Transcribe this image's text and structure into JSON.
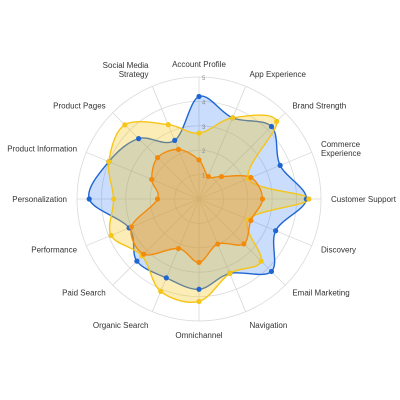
{
  "chart_data": {
    "type": "radar",
    "title": "",
    "categories": [
      "Account Profile",
      "App Experience",
      "Brand Strength",
      "Commerce Experience",
      "Customer Support",
      "Discovery",
      "Email Marketing",
      "Navigation",
      "Omnichannel",
      "Organic Search",
      "Paid Search",
      "Performance",
      "Personalization",
      "Product Information",
      "Product Pages",
      "Social Media Strategy"
    ],
    "category_display": [
      [
        "Account Profile"
      ],
      [
        "App Experience"
      ],
      [
        "Brand Strength"
      ],
      [
        "Commerce",
        "Experience"
      ],
      [
        "Customer Support"
      ],
      [
        "Discovery"
      ],
      [
        "Email Marketing"
      ],
      [
        "Navigation"
      ],
      [
        "Omnichannel"
      ],
      [
        "Organic Search"
      ],
      [
        "Paid Search"
      ],
      [
        "Performance"
      ],
      [
        "Personalization"
      ],
      [
        "Product Information"
      ],
      [
        "Product Pages"
      ],
      [
        "Social Media",
        "Strategy"
      ]
    ],
    "rmax": 5,
    "ticks": [
      1,
      2,
      3,
      4,
      5
    ],
    "tick_labels": [
      "1",
      "2",
      "3",
      "4",
      "5"
    ],
    "grid": true,
    "series": [
      {
        "name": "",
        "color": "#1f66d1",
        "fill": "rgba(66,133,244,0.28)",
        "values": [
          4.2,
          3.6,
          4.2,
          3.6,
          4.4,
          3.4,
          4.2,
          3.3,
          3.7,
          3.5,
          3.6,
          3.1,
          4.5,
          4.0,
          3.5,
          2.6
        ]
      },
      {
        "name": "",
        "color": "#f5c518",
        "fill": "rgba(245,197,24,0.32)",
        "values": [
          2.7,
          3.6,
          4.5,
          2.2,
          4.5,
          2.2,
          3.6,
          3.3,
          4.2,
          4.1,
          3.3,
          3.9,
          3.5,
          4.0,
          4.3,
          3.3
        ]
      },
      {
        "name": "",
        "color": "#f28b0c",
        "fill": "rgba(242,139,12,0.30)",
        "values": [
          1.6,
          1.0,
          1.3,
          2.3,
          2.6,
          2.3,
          2.6,
          2.0,
          2.6,
          2.2,
          3.2,
          3.0,
          1.7,
          2.1,
          2.4,
          2.2
        ]
      }
    ]
  }
}
